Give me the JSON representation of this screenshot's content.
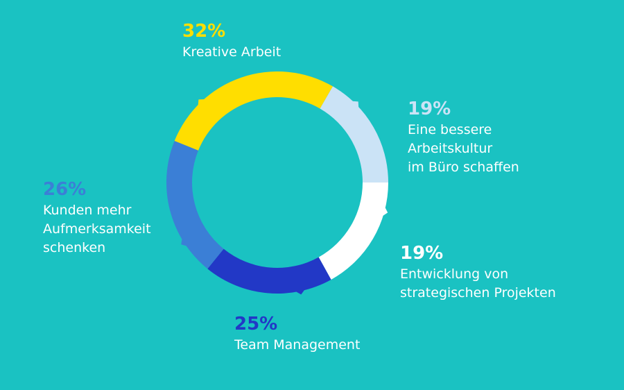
{
  "chart_data": {
    "type": "pie",
    "donut": true,
    "segments": [
      {
        "label": "Kreative Arbeit",
        "value": 32,
        "value_label": "32%",
        "color": "#ffde00"
      },
      {
        "label": "Eine bessere\nArbeitskultur\nim Büro schaffen",
        "value": 19,
        "value_label": "19%",
        "color": "#cbe3f6"
      },
      {
        "label": "Entwicklung von\nstrategischen Projekten",
        "value": 19,
        "value_label": "19%",
        "color": "#ffffff"
      },
      {
        "label": "Team Management",
        "value": 25,
        "value_label": "25%",
        "color": "#2238c6"
      },
      {
        "label": "Kunden mehr\nAufmerksamkeit\nschenken",
        "value": 26,
        "value_label": "26%",
        "color": "#3b7fd6"
      }
    ],
    "background": "#1ac2c2",
    "label_text_color": "#ffffff"
  }
}
